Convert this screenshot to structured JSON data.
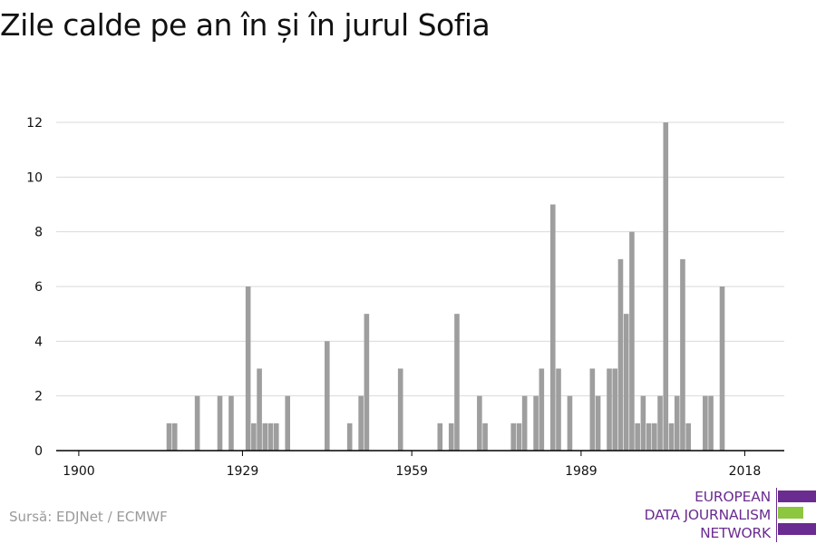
{
  "title": "Zile calde pe an în și în jurul Sofia",
  "source": "Sursă: EDJNet / ECMWF",
  "logo": {
    "lines": [
      "EUROPEAN",
      "DATA JOURNALISM",
      "NETWORK"
    ],
    "colors": {
      "purple": "#6a2c91",
      "green": "#8dc63f"
    }
  },
  "colors": {
    "bar": "#9e9e9e",
    "grid": "#d9d9d9",
    "axis": "#000000",
    "text": "#111111"
  },
  "chart_data": {
    "type": "bar",
    "title": "Zile calde pe an în și în jurul Sofia",
    "xlabel": "",
    "ylabel": "",
    "xlim": [
      1896,
      2025
    ],
    "ylim": [
      0,
      12
    ],
    "yticks": [
      0,
      2,
      4,
      6,
      8,
      10,
      12
    ],
    "xticks": [
      1900,
      1929,
      1959,
      1989,
      2018
    ],
    "grid": true,
    "x": [
      1916,
      1917,
      1921,
      1925,
      1927,
      1930,
      1931,
      1932,
      1933,
      1934,
      1935,
      1937,
      1944,
      1948,
      1950,
      1951,
      1957,
      1964,
      1966,
      1967,
      1971,
      1972,
      1977,
      1978,
      1979,
      1981,
      1982,
      1984,
      1985,
      1987,
      1991,
      1992,
      1994,
      1995,
      1996,
      1997,
      1998,
      1999,
      2000,
      2001,
      2002,
      2003,
      2004,
      2005,
      2006,
      2007,
      2008,
      2011,
      2012,
      2014,
      2015,
      2016,
      2017
    ],
    "values": [
      1,
      1,
      2,
      2,
      2,
      6,
      1,
      3,
      1,
      1,
      1,
      2,
      4,
      1,
      2,
      5,
      3,
      1,
      1,
      5,
      2,
      1,
      1,
      1,
      2,
      2,
      3,
      9,
      3,
      2,
      3,
      2,
      3,
      3,
      7,
      5,
      8,
      1,
      2,
      1,
      1,
      2,
      12,
      1,
      2,
      7,
      1,
      2,
      2,
      6,
      0,
      0,
      0
    ]
  }
}
